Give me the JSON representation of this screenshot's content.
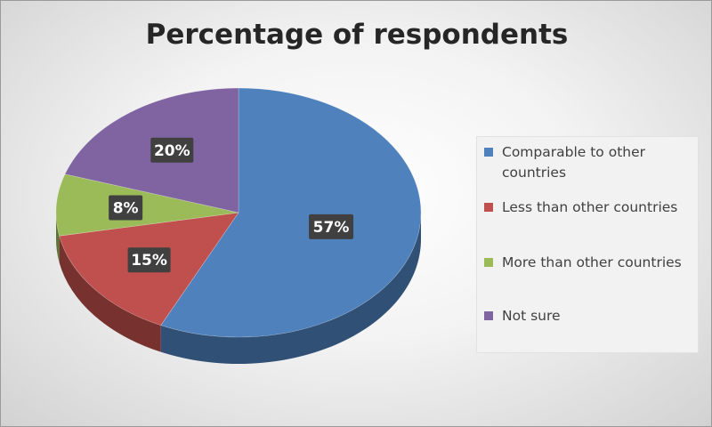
{
  "chart_data": {
    "type": "pie",
    "title": "Percentage of respondents",
    "categories": [
      "Comparable to other countries",
      "Less than other countries",
      "More than other countries",
      "Not sure"
    ],
    "values": [
      57,
      15,
      8,
      20
    ],
    "labels": [
      "57%",
      "15%",
      "8%",
      "20%"
    ],
    "colors": [
      "#4f81bd",
      "#c0504d",
      "#9bbb59",
      "#8064a2"
    ],
    "legend": "right",
    "style": "3d"
  }
}
